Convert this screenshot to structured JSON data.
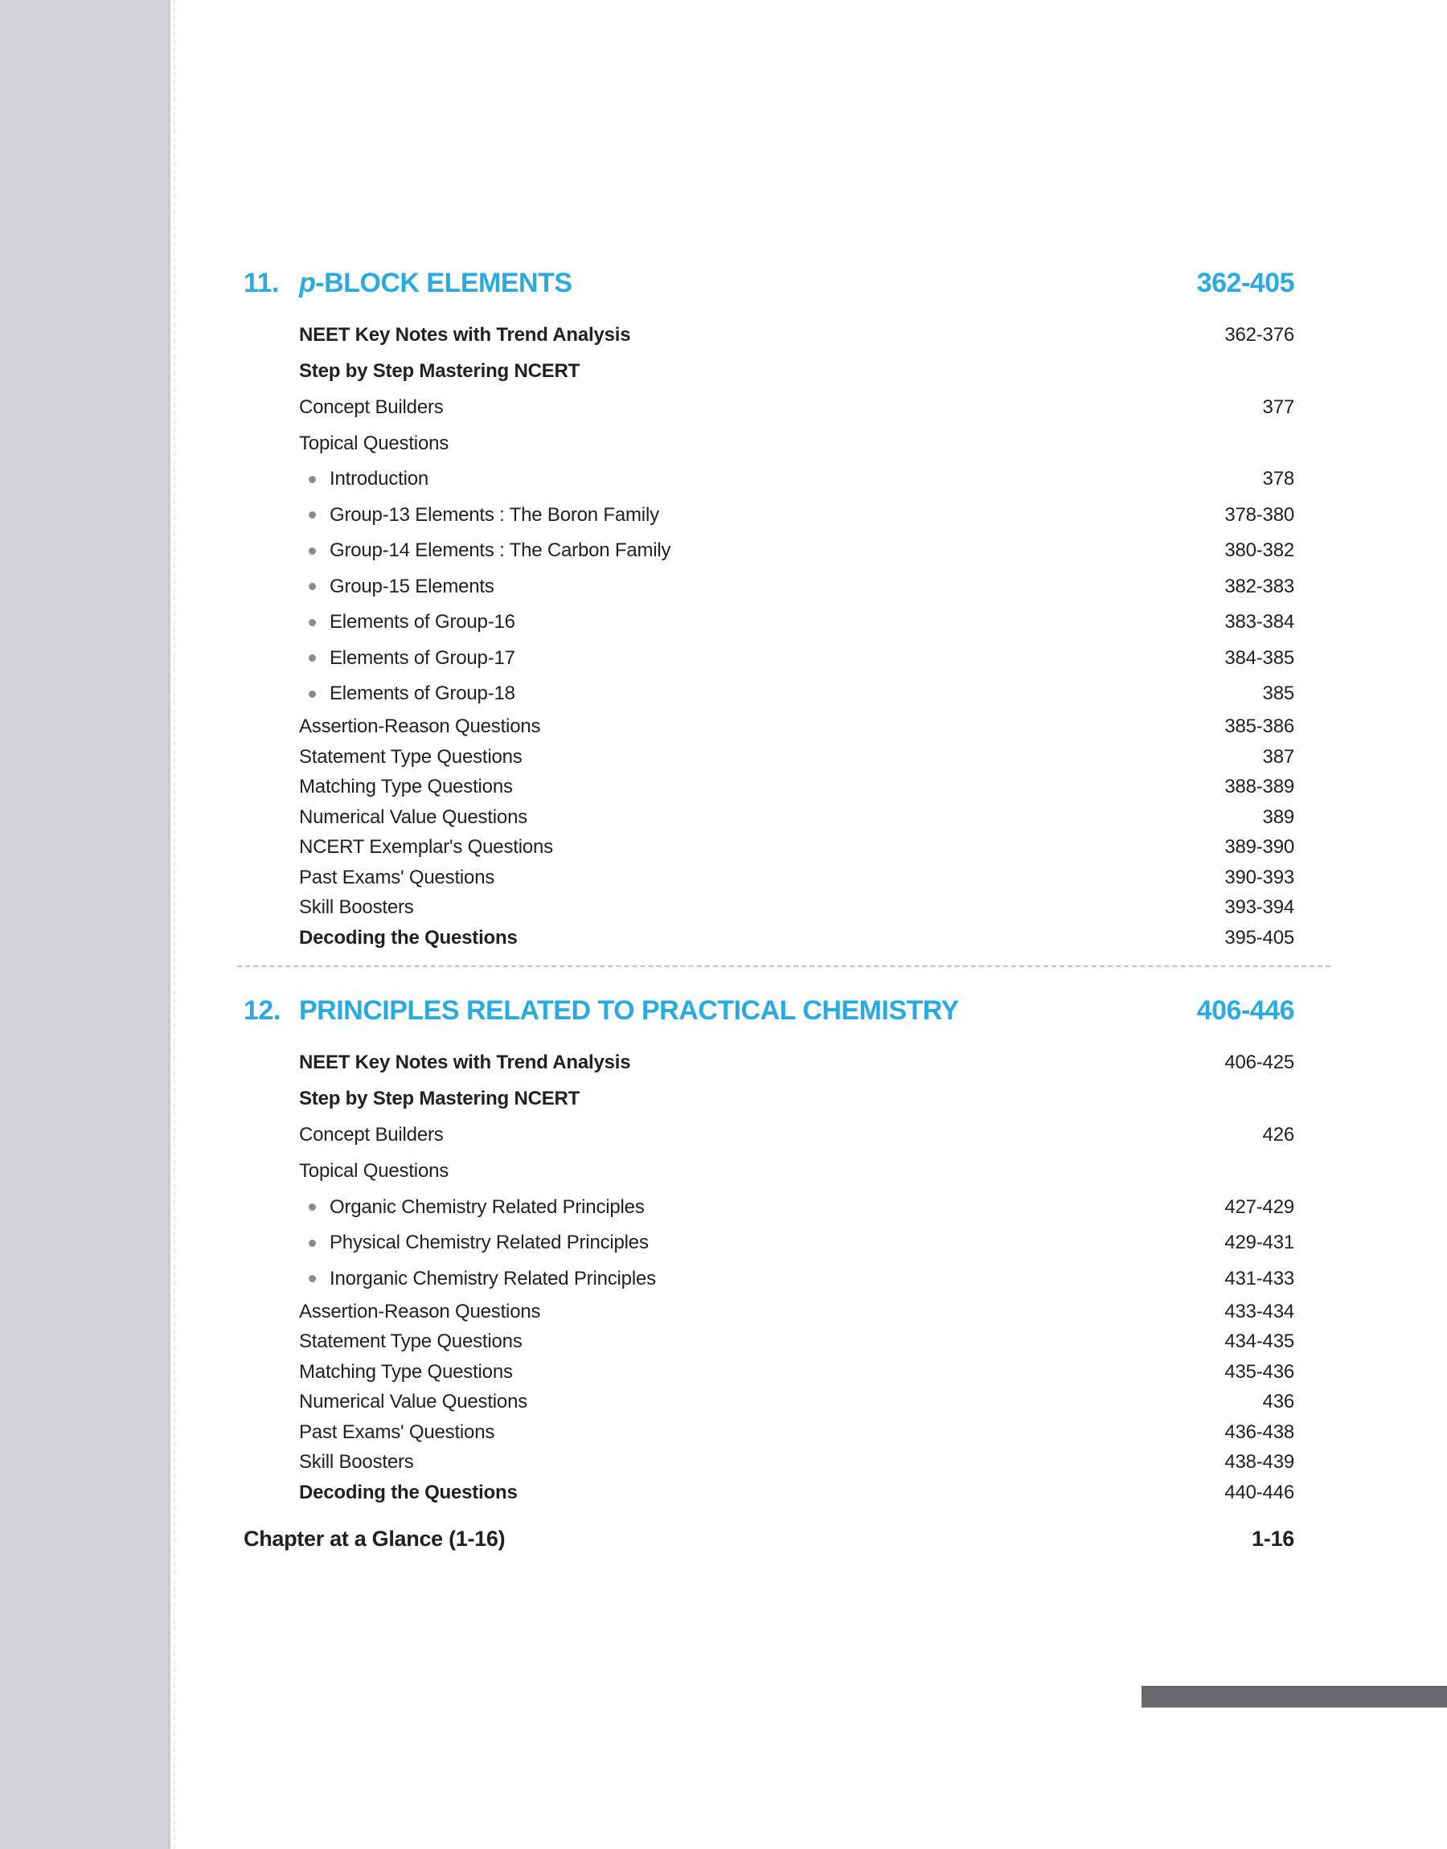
{
  "page": {
    "accent_color": "#29abe2",
    "left_strip_color": "#d3d3d7",
    "bottom_bar_color": "#6a6a6e"
  },
  "toc": {
    "chapters": [
      {
        "number": "11.",
        "title_italic": "p",
        "title": "-BLOCK ELEMENTS",
        "pages": "362-405",
        "items": [
          {
            "label": "NEET Key Notes with Trend Analysis",
            "pages": "362-376"
          },
          {
            "label": "Step by Step Mastering NCERT",
            "pages": ""
          },
          {
            "label": "Concept Builders",
            "pages": "377"
          },
          {
            "label": "Topical Questions",
            "pages": ""
          },
          {
            "label": "Introduction",
            "pages": "378"
          },
          {
            "label": "Group-13 Elements : The Boron Family",
            "pages": "378-380"
          },
          {
            "label": "Group-14 Elements : The Carbon Family",
            "pages": "380-382"
          },
          {
            "label": "Group-15 Elements",
            "pages": "382-383"
          },
          {
            "label": "Elements of Group-16",
            "pages": "383-384"
          },
          {
            "label": "Elements of Group-17",
            "pages": "384-385"
          },
          {
            "label": "Elements of Group-18",
            "pages": "385"
          },
          {
            "label": "Assertion-Reason Questions",
            "pages": "385-386"
          },
          {
            "label": "Statement Type Questions",
            "pages": "387"
          },
          {
            "label": "Matching Type Questions",
            "pages": "388-389"
          },
          {
            "label": "Numerical Value Questions",
            "pages": "389"
          },
          {
            "label": "NCERT Exemplar's Questions",
            "pages": "389-390"
          },
          {
            "label": "Past Exams' Questions",
            "pages": "390-393"
          },
          {
            "label": "Skill Boosters",
            "pages": "393-394"
          },
          {
            "label": "Decoding the Questions",
            "pages": "395-405"
          }
        ]
      },
      {
        "number": "12.",
        "title_italic": "",
        "title": "PRINCIPLES RELATED TO PRACTICAL CHEMISTRY",
        "pages": "406-446",
        "items": [
          {
            "label": "NEET Key Notes with Trend Analysis",
            "pages": "406-425"
          },
          {
            "label": "Step by Step Mastering NCERT",
            "pages": ""
          },
          {
            "label": "Concept Builders",
            "pages": "426"
          },
          {
            "label": "Topical Questions",
            "pages": ""
          },
          {
            "label": "Organic Chemistry Related Principles",
            "pages": "427-429"
          },
          {
            "label": "Physical Chemistry Related Principles",
            "pages": "429-431"
          },
          {
            "label": "Inorganic Chemistry Related Principles",
            "pages": "431-433"
          },
          {
            "label": "Assertion-Reason Questions",
            "pages": "433-434"
          },
          {
            "label": "Statement Type Questions",
            "pages": "434-435"
          },
          {
            "label": "Matching Type Questions",
            "pages": "435-436"
          },
          {
            "label": "Numerical Value Questions",
            "pages": "436"
          },
          {
            "label": "Past Exams' Questions",
            "pages": "436-438"
          },
          {
            "label": "Skill Boosters",
            "pages": "438-439"
          },
          {
            "label": "Decoding the Questions",
            "pages": "440-446"
          }
        ]
      }
    ],
    "footer": {
      "label": "Chapter at a Glance (1-16)",
      "pages": "1-16"
    }
  }
}
